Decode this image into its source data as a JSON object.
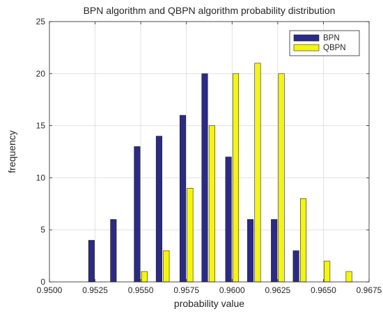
{
  "chart_data": {
    "type": "bar",
    "title": "BPN algorithm and QBPN algorithm probability distribution",
    "xlabel": "probability value",
    "ylabel": "frequency",
    "xlim": [
      0.95,
      0.9675
    ],
    "ylim": [
      0,
      25
    ],
    "xticks": [
      "0.9500",
      "0.9525",
      "0.9550",
      "0.9575",
      "0.9600",
      "0.9625",
      "0.9650",
      "0.9675"
    ],
    "yticks": [
      "0",
      "5",
      "10",
      "15",
      "20",
      "25"
    ],
    "categories": [
      0.9525,
      0.9537,
      0.955,
      0.9562,
      0.9575,
      0.9587,
      0.96,
      0.9612,
      0.9625,
      0.9637,
      0.965,
      0.9662
    ],
    "series": [
      {
        "name": "BPN",
        "color": "#2b2a84",
        "values": [
          4,
          6,
          13,
          14,
          16,
          20,
          12,
          6,
          6,
          3,
          0,
          0
        ]
      },
      {
        "name": "QBPN",
        "color": "#f5f50f",
        "values": [
          0,
          0,
          1,
          3,
          9,
          15,
          20,
          21,
          20,
          8,
          2,
          1
        ]
      }
    ],
    "grid": true,
    "legend_position": "top-right"
  }
}
